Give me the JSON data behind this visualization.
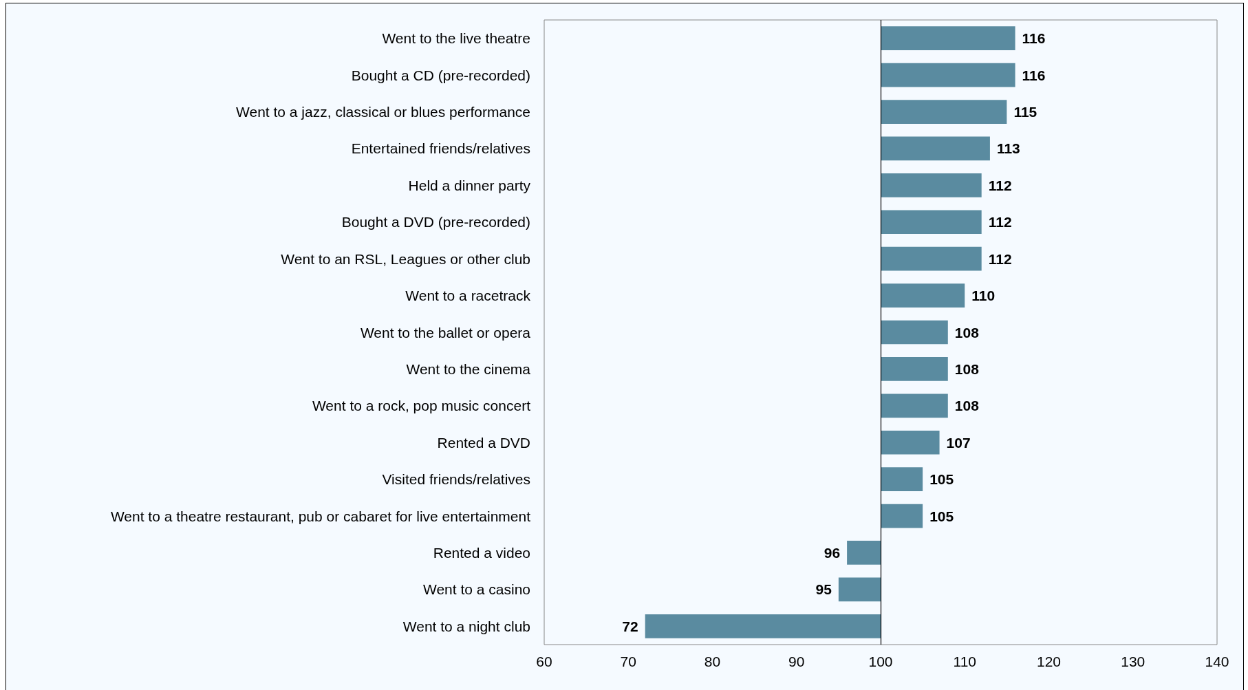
{
  "chart_data": {
    "type": "bar",
    "orientation": "horizontal",
    "categories": [
      "Went to the live theatre",
      "Bought a CD (pre-recorded)",
      "Went to a jazz, classical or blues performance",
      "Entertained friends/relatives",
      "Held a dinner party",
      "Bought a DVD (pre-recorded)",
      "Went to an RSL, Leagues or other club",
      "Went to a racetrack",
      "Went to the ballet or opera",
      "Went to the cinema",
      "Went to a rock, pop music concert",
      "Rented a DVD",
      "Visited friends/relatives",
      "Went to a theatre restaurant, pub or cabaret for live entertainment",
      "Rented a video",
      "Went to a casino",
      "Went to a night club"
    ],
    "base": [
      100,
      100,
      100,
      100,
      100,
      100,
      100,
      100,
      100,
      100,
      100,
      100,
      100,
      100,
      100,
      100,
      100
    ],
    "values": [
      16,
      16,
      15,
      13,
      12,
      12,
      12,
      10,
      8,
      8,
      8,
      7,
      5,
      5,
      -4,
      -5,
      -28
    ],
    "value_labels": [
      "116",
      "116",
      "115",
      "113",
      "112",
      "112",
      "112",
      "110",
      "108",
      "108",
      "108",
      "107",
      "105",
      "105",
      "96",
      "95",
      "72"
    ],
    "color": "#5a8ba0",
    "xlim": [
      60,
      140
    ],
    "xticks": [
      60,
      70,
      80,
      90,
      100,
      110,
      120,
      130,
      140
    ],
    "ref_lines": [
      {
        "axis": "x",
        "value": 100,
        "color": "#000000"
      }
    ],
    "grid": false
  }
}
